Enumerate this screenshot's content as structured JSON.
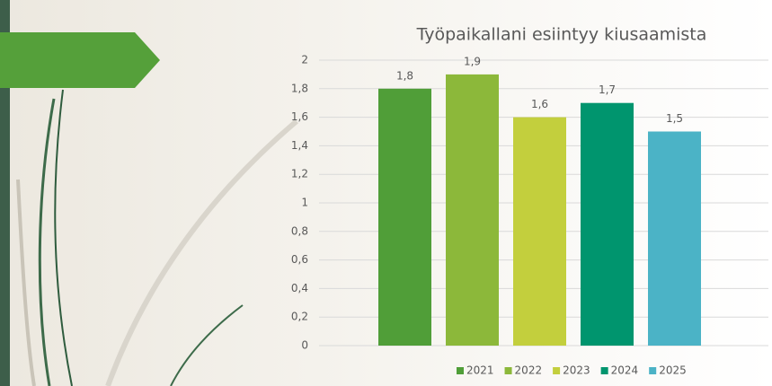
{
  "chart_data": {
    "type": "bar",
    "title": "Työpaikallani esiintyy kiusaamista",
    "categories": [
      null
    ],
    "series": [
      {
        "name": "2021",
        "color": "#509e38",
        "values": [
          1.8
        ],
        "value_labels": [
          "1,8"
        ]
      },
      {
        "name": "2022",
        "color": "#8cb83a",
        "values": [
          1.9
        ],
        "value_labels": [
          "1,9"
        ]
      },
      {
        "name": "2023",
        "color": "#c3cf3d",
        "values": [
          1.6
        ],
        "value_labels": [
          "1,6"
        ]
      },
      {
        "name": "2024",
        "color": "#00956e",
        "values": [
          1.7
        ],
        "value_labels": [
          "1,7"
        ]
      },
      {
        "name": "2025",
        "color": "#4bb3c6",
        "values": [
          1.5
        ],
        "value_labels": [
          "1,5"
        ]
      }
    ],
    "ylim": [
      0,
      2
    ],
    "yticks": [
      0,
      {
        "value": 0.2,
        "label": "0,2"
      },
      {
        "value": 0.4,
        "label": "0,4"
      },
      {
        "value": 0.6,
        "label": "0,6"
      },
      {
        "value": 0.8,
        "label": "0,8"
      },
      1,
      {
        "value": 1.2,
        "label": "1,2"
      },
      {
        "value": 1.4,
        "label": "1,4"
      },
      {
        "value": 1.6,
        "label": "1,6"
      },
      {
        "value": 1.8,
        "label": "1,8"
      },
      2
    ],
    "grid": true,
    "legend": "bottom"
  }
}
